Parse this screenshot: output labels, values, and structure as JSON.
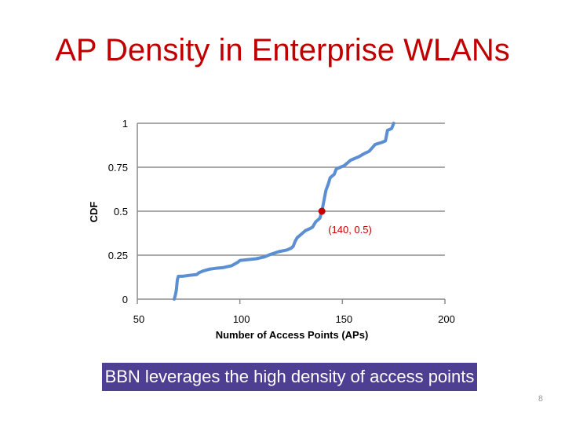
{
  "slide": {
    "title": "AP Density in Enterprise WLANs",
    "callout": "BBN leverages the high density of access points",
    "page_number": "8"
  },
  "chart_data": {
    "type": "line",
    "title": "",
    "xlabel": "Number of Access Points (APs)",
    "ylabel": "CDF",
    "xlim": [
      50,
      200
    ],
    "ylim": [
      0,
      1
    ],
    "x_ticks": [
      "50",
      "100",
      "150",
      "200"
    ],
    "y_ticks": [
      "0",
      "0.25",
      "0.5",
      "0.75",
      "1"
    ],
    "grid": "horizontal",
    "series": [
      {
        "color": "#5b8fd1",
        "x": [
          68,
          68.5,
          69,
          69.5,
          70,
          72,
          75,
          79,
          80,
          82,
          85,
          88,
          92,
          96,
          99,
          100,
          104,
          108,
          112,
          115,
          119,
          123,
          125,
          126,
          127,
          128,
          129,
          130,
          131,
          132,
          134,
          135.5,
          136,
          137,
          139,
          139.5,
          140,
          141,
          142,
          143,
          144,
          146,
          147,
          149,
          151,
          154,
          158,
          161,
          163,
          166,
          169,
          171,
          172,
          174,
          175
        ],
        "y": [
          0,
          0.02,
          0.05,
          0.11,
          0.13,
          0.13,
          0.135,
          0.14,
          0.15,
          0.16,
          0.17,
          0.175,
          0.18,
          0.19,
          0.21,
          0.22,
          0.225,
          0.23,
          0.24,
          0.255,
          0.27,
          0.28,
          0.29,
          0.3,
          0.33,
          0.35,
          0.36,
          0.37,
          0.38,
          0.39,
          0.4,
          0.41,
          0.42,
          0.44,
          0.46,
          0.48,
          0.5,
          0.56,
          0.62,
          0.65,
          0.69,
          0.71,
          0.74,
          0.75,
          0.76,
          0.79,
          0.81,
          0.83,
          0.84,
          0.88,
          0.89,
          0.9,
          0.96,
          0.97,
          1.0
        ]
      }
    ],
    "annotations": [
      {
        "x": 140,
        "y": 0.5,
        "label": "(140, 0.5)",
        "color": "#c00000"
      }
    ]
  }
}
